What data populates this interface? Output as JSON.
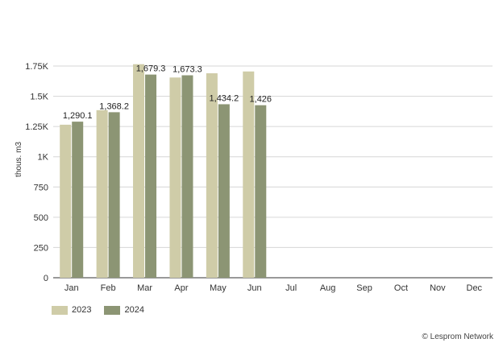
{
  "chart_data": {
    "type": "bar",
    "categories": [
      "Jan",
      "Feb",
      "Mar",
      "Apr",
      "May",
      "Jun",
      "Jul",
      "Aug",
      "Sep",
      "Oct",
      "Nov",
      "Dec"
    ],
    "series": [
      {
        "name": "2023",
        "color": "#cfcca8",
        "values": [
          1265,
          1385,
          1765,
          1655,
          1690,
          1705,
          null,
          null,
          null,
          null,
          null,
          null
        ],
        "labels": [
          "",
          "",
          "",
          "",
          "",
          "",
          "",
          "",
          "",
          "",
          "",
          ""
        ]
      },
      {
        "name": "2024",
        "color": "#8c9574",
        "values": [
          1290.1,
          1368.2,
          1679.3,
          1673.3,
          1434.2,
          1426,
          null,
          null,
          null,
          null,
          null,
          null
        ],
        "labels": [
          "1,290.1",
          "1,368.2",
          "1,679.3",
          "1,673.3",
          "1,434.2",
          "1,426",
          "",
          "",
          "",
          "",
          "",
          ""
        ]
      }
    ],
    "ylabel": "thous. m3",
    "xlabel": "",
    "ylim": [
      0,
      1750
    ],
    "yticks": [
      0,
      250,
      500,
      750,
      1000,
      1250,
      1500,
      1750
    ],
    "ytick_labels": [
      "0",
      "250",
      "500",
      "750",
      "1K",
      "1.25K",
      "1.5K",
      "1.75K"
    ],
    "grid": true,
    "legend_position": "bottom-left"
  },
  "credit": "© Lesprom Network"
}
